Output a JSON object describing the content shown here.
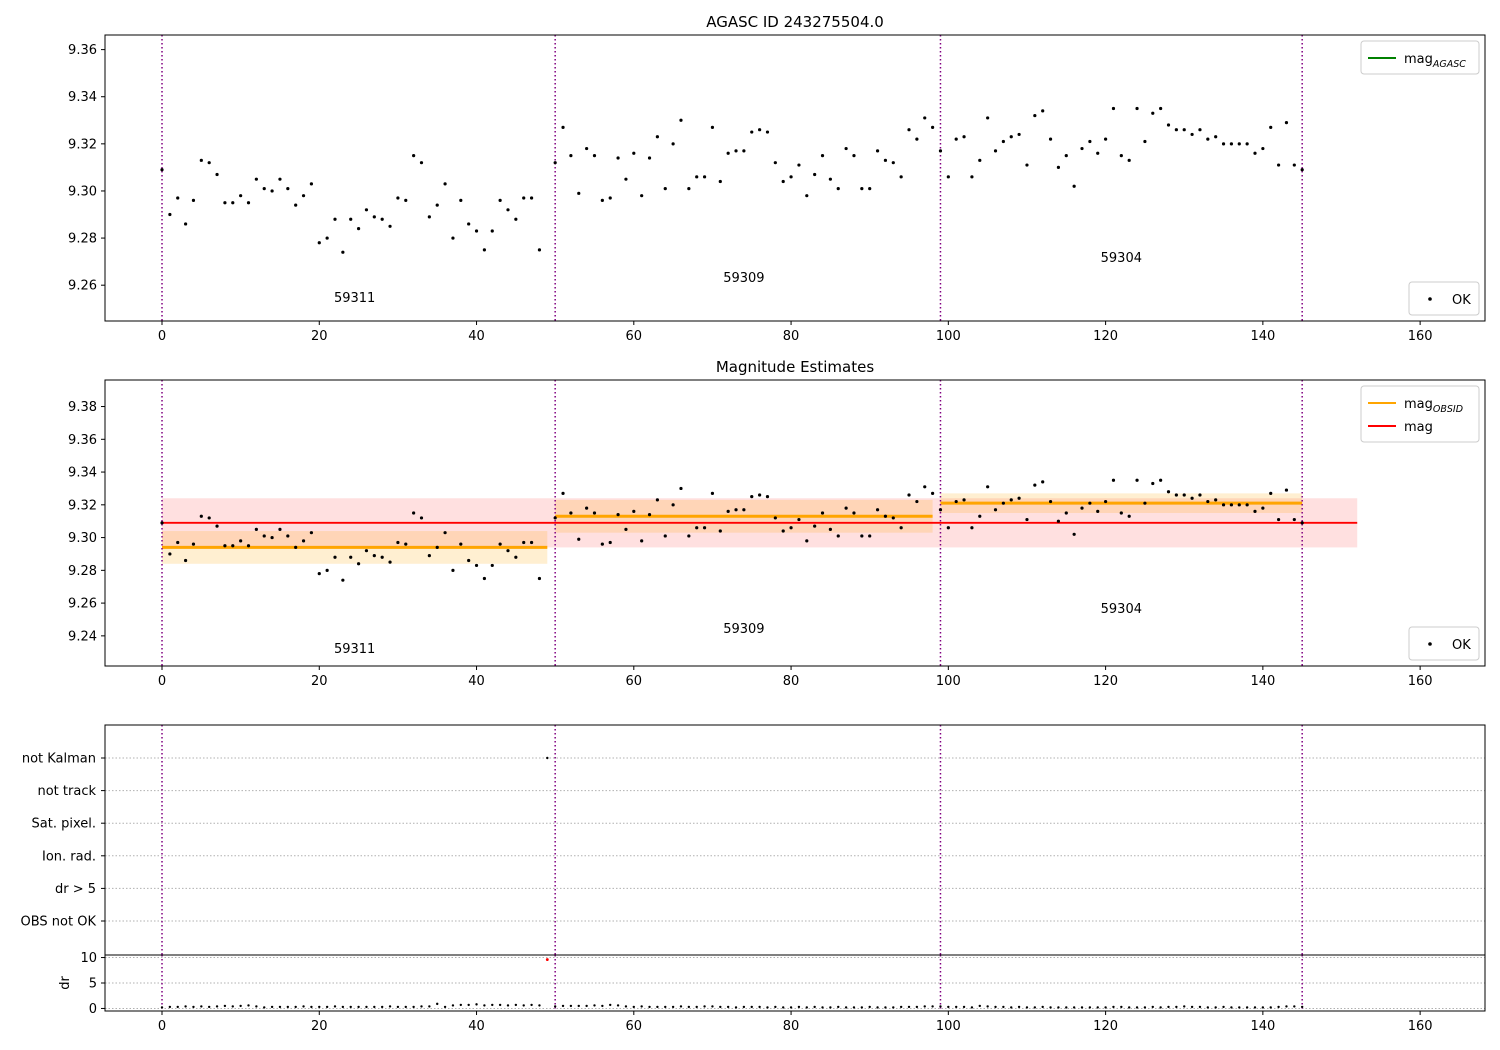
{
  "chart_data": [
    {
      "type": "scatter",
      "title": "AGASC ID 243275504.0",
      "xlim": [
        -7.25,
        168.25
      ],
      "ylim": [
        9.2448,
        9.3662
      ],
      "xticks": [
        0,
        20,
        40,
        60,
        80,
        100,
        120,
        140,
        160
      ],
      "yticks": [
        9.26,
        9.28,
        9.3,
        9.32,
        9.34,
        9.36
      ],
      "ytick_decimals": 2,
      "obsid_boundaries": [
        0,
        50,
        99,
        145
      ],
      "obsid_labels": [
        {
          "text": "59311",
          "x": 24.5,
          "y": 9.2528
        },
        {
          "text": "59309",
          "x": 74,
          "y": 9.2613
        },
        {
          "text": "59304",
          "x": 122,
          "y": 9.2698
        }
      ],
      "legends": [
        {
          "position": "upper-right",
          "entries": [
            {
              "kind": "line",
              "color": "#008000",
              "label": "mag",
              "sub": "AGASC"
            }
          ]
        },
        {
          "position": "lower-right",
          "entries": [
            {
              "kind": "dot",
              "color": "#000000",
              "label": "OK"
            }
          ]
        }
      ],
      "series": [
        {
          "values": [
            9.309,
            9.29,
            9.297,
            9.286,
            9.296,
            9.313,
            9.312,
            9.307,
            9.295,
            9.295,
            9.298,
            9.295,
            9.305,
            9.301,
            9.3,
            9.305,
            9.301,
            9.294,
            9.298,
            9.303,
            9.278,
            9.28,
            9.288,
            9.274,
            9.288,
            9.284,
            9.292,
            9.289,
            9.288,
            9.285,
            9.297,
            9.296,
            9.315,
            9.312,
            9.289,
            9.294,
            9.303,
            9.28,
            9.296,
            9.286,
            9.283,
            9.275,
            9.283,
            9.296,
            9.292,
            9.288,
            9.297,
            9.297,
            9.275,
            null,
            9.312,
            9.327,
            9.315,
            9.299,
            9.318,
            9.315,
            9.296,
            9.297,
            9.314,
            9.305,
            9.316,
            9.298,
            9.314,
            9.323,
            9.301,
            9.32,
            9.33,
            9.301,
            9.306,
            9.306,
            9.327,
            9.304,
            9.316,
            9.317,
            9.317,
            9.325,
            9.326,
            9.325,
            9.312,
            9.304,
            9.306,
            9.311,
            9.298,
            9.307,
            9.315,
            9.305,
            9.301,
            9.318,
            9.315,
            9.301,
            9.301,
            9.317,
            9.313,
            9.312,
            9.306,
            9.326,
            9.322,
            9.331,
            9.327,
            9.317,
            9.306,
            9.322,
            9.323,
            9.306,
            9.313,
            9.331,
            9.317,
            9.321,
            9.323,
            9.324,
            9.311,
            9.332,
            9.334,
            9.322,
            9.31,
            9.315,
            9.302,
            9.318,
            9.321,
            9.316,
            9.322,
            9.335,
            9.315,
            9.313,
            9.335,
            9.321,
            9.333,
            9.335,
            9.328,
            9.326,
            9.326,
            9.324,
            9.326,
            9.322,
            9.323,
            9.32,
            9.32,
            9.32,
            9.32,
            9.316,
            9.318,
            9.327,
            9.311,
            9.329,
            9.311,
            9.309
          ]
        }
      ]
    },
    {
      "type": "scatter",
      "title": "Magnitude Estimates",
      "xlim": [
        -7.25,
        168.25
      ],
      "ylim": [
        9.2216,
        9.3962
      ],
      "xticks": [
        0,
        20,
        40,
        60,
        80,
        100,
        120,
        140,
        160
      ],
      "yticks": [
        9.24,
        9.26,
        9.28,
        9.3,
        9.32,
        9.34,
        9.36,
        9.38
      ],
      "ytick_decimals": 2,
      "obsid_boundaries": [
        0,
        50,
        99,
        145
      ],
      "obsid_labels": [
        {
          "text": "59311",
          "x": 24.5,
          "y": 9.2295
        },
        {
          "text": "59309",
          "x": 74,
          "y": 9.2417
        },
        {
          "text": "59304",
          "x": 122,
          "y": 9.254
        }
      ],
      "mag_agasc": {
        "value": 9.309,
        "band": [
          9.294,
          9.324
        ],
        "xrange": [
          0,
          152
        ],
        "color": "#ff0000"
      },
      "mag_obsid": [
        {
          "xrange": [
            0,
            49
          ],
          "value": 9.294,
          "band": [
            9.284,
            9.304
          ]
        },
        {
          "xrange": [
            50,
            98
          ],
          "value": 9.313,
          "band": [
            9.303,
            9.323
          ]
        },
        {
          "xrange": [
            99,
            145
          ],
          "value": 9.321,
          "band": [
            9.315,
            9.327
          ]
        }
      ],
      "legends": [
        {
          "position": "upper-right",
          "entries": [
            {
              "kind": "line",
              "color": "#ffa500",
              "label": "mag",
              "sub": "OBSID"
            },
            {
              "kind": "line",
              "color": "#ff0000",
              "label": "mag",
              "sub": ""
            }
          ]
        },
        {
          "position": "lower-right",
          "entries": [
            {
              "kind": "dot",
              "color": "#000000",
              "label": "OK"
            }
          ]
        }
      ],
      "series": [
        {
          "values": [
            9.309,
            9.29,
            9.297,
            9.286,
            9.296,
            9.313,
            9.312,
            9.307,
            9.295,
            9.295,
            9.298,
            9.295,
            9.305,
            9.301,
            9.3,
            9.305,
            9.301,
            9.294,
            9.298,
            9.303,
            9.278,
            9.28,
            9.288,
            9.274,
            9.288,
            9.284,
            9.292,
            9.289,
            9.288,
            9.285,
            9.297,
            9.296,
            9.315,
            9.312,
            9.289,
            9.294,
            9.303,
            9.28,
            9.296,
            9.286,
            9.283,
            9.275,
            9.283,
            9.296,
            9.292,
            9.288,
            9.297,
            9.297,
            9.275,
            null,
            9.312,
            9.327,
            9.315,
            9.299,
            9.318,
            9.315,
            9.296,
            9.297,
            9.314,
            9.305,
            9.316,
            9.298,
            9.314,
            9.323,
            9.301,
            9.32,
            9.33,
            9.301,
            9.306,
            9.306,
            9.327,
            9.304,
            9.316,
            9.317,
            9.317,
            9.325,
            9.326,
            9.325,
            9.312,
            9.304,
            9.306,
            9.311,
            9.298,
            9.307,
            9.315,
            9.305,
            9.301,
            9.318,
            9.315,
            9.301,
            9.301,
            9.317,
            9.313,
            9.312,
            9.306,
            9.326,
            9.322,
            9.331,
            9.327,
            9.317,
            9.306,
            9.322,
            9.323,
            9.306,
            9.313,
            9.331,
            9.317,
            9.321,
            9.323,
            9.324,
            9.311,
            9.332,
            9.334,
            9.322,
            9.31,
            9.315,
            9.302,
            9.318,
            9.321,
            9.316,
            9.322,
            9.335,
            9.315,
            9.313,
            9.335,
            9.321,
            9.333,
            9.335,
            9.328,
            9.326,
            9.326,
            9.324,
            9.326,
            9.322,
            9.323,
            9.32,
            9.32,
            9.32,
            9.32,
            9.316,
            9.318,
            9.327,
            9.311,
            9.329,
            9.311,
            9.309
          ]
        }
      ]
    },
    {
      "type": "scatter",
      "title": "",
      "xlim": [
        -7.25,
        168.25
      ],
      "flag_rows": [
        "not Kalman",
        "not track",
        "Sat. pixel.",
        "Ion. rad.",
        "dr > 5",
        "OBS not OK"
      ],
      "flag_points": [
        {
          "row": "not Kalman",
          "x": 49,
          "color": "#000000"
        }
      ],
      "obsid_boundaries": [
        0,
        50,
        99,
        145
      ]
    },
    {
      "type": "scatter",
      "title": "",
      "ylabel": "dr",
      "xlim": [
        -7.25,
        168.25
      ],
      "ylim": [
        -0.5,
        10.5
      ],
      "xticks": [
        0,
        20,
        40,
        60,
        80,
        100,
        120,
        140,
        160
      ],
      "yticks": [
        0,
        5,
        10
      ],
      "ytick_decimals": 0,
      "obsid_boundaries": [
        0,
        50,
        99,
        145
      ],
      "highlight_points": [
        {
          "x": 49,
          "y": 9.6,
          "color": "#ff0000"
        }
      ],
      "series": [
        {
          "values": [
            0.2,
            0.3,
            0.3,
            0.4,
            0.3,
            0.4,
            0.3,
            0.4,
            0.5,
            0.4,
            0.5,
            0.6,
            0.4,
            0.2,
            0.3,
            0.3,
            0.3,
            0.3,
            0.4,
            0.3,
            0.3,
            0.3,
            0.4,
            0.3,
            0.3,
            0.3,
            0.3,
            0.3,
            0.3,
            0.4,
            0.3,
            0.3,
            0.3,
            0.4,
            0.4,
            0.9,
            0.3,
            0.6,
            0.7,
            0.7,
            0.8,
            0.6,
            0.7,
            0.7,
            0.6,
            0.7,
            0.6,
            0.7,
            0.6,
            null,
            0.4,
            0.5,
            0.5,
            0.5,
            0.5,
            0.6,
            0.5,
            0.7,
            0.6,
            0.4,
            0.3,
            0.4,
            0.3,
            0.3,
            0.3,
            0.3,
            0.4,
            0.3,
            0.3,
            0.4,
            0.4,
            0.3,
            0.3,
            0.2,
            0.3,
            0.3,
            0.3,
            0.2,
            0.3,
            0.2,
            0.2,
            0.3,
            0.2,
            0.3,
            0.2,
            0.2,
            0.3,
            0.2,
            0.2,
            0.2,
            0.3,
            0.2,
            0.2,
            0.2,
            0.3,
            0.3,
            0.3,
            0.4,
            0.4,
            0.4,
            0.3,
            0.3,
            0.3,
            0.2,
            0.5,
            0.4,
            0.3,
            0.3,
            0.2,
            0.3,
            0.2,
            0.2,
            0.3,
            0.2,
            0.2,
            0.2,
            0.2,
            0.2,
            0.2,
            0.2,
            0.2,
            0.3,
            0.3,
            0.2,
            0.2,
            0.2,
            0.3,
            0.2,
            0.3,
            0.3,
            0.4,
            0.3,
            0.3,
            0.2,
            0.2,
            0.3,
            0.2,
            0.2,
            0.2,
            0.2,
            0.2,
            0.2,
            0.3,
            0.4,
            0.4,
            0.3
          ]
        }
      ]
    }
  ]
}
